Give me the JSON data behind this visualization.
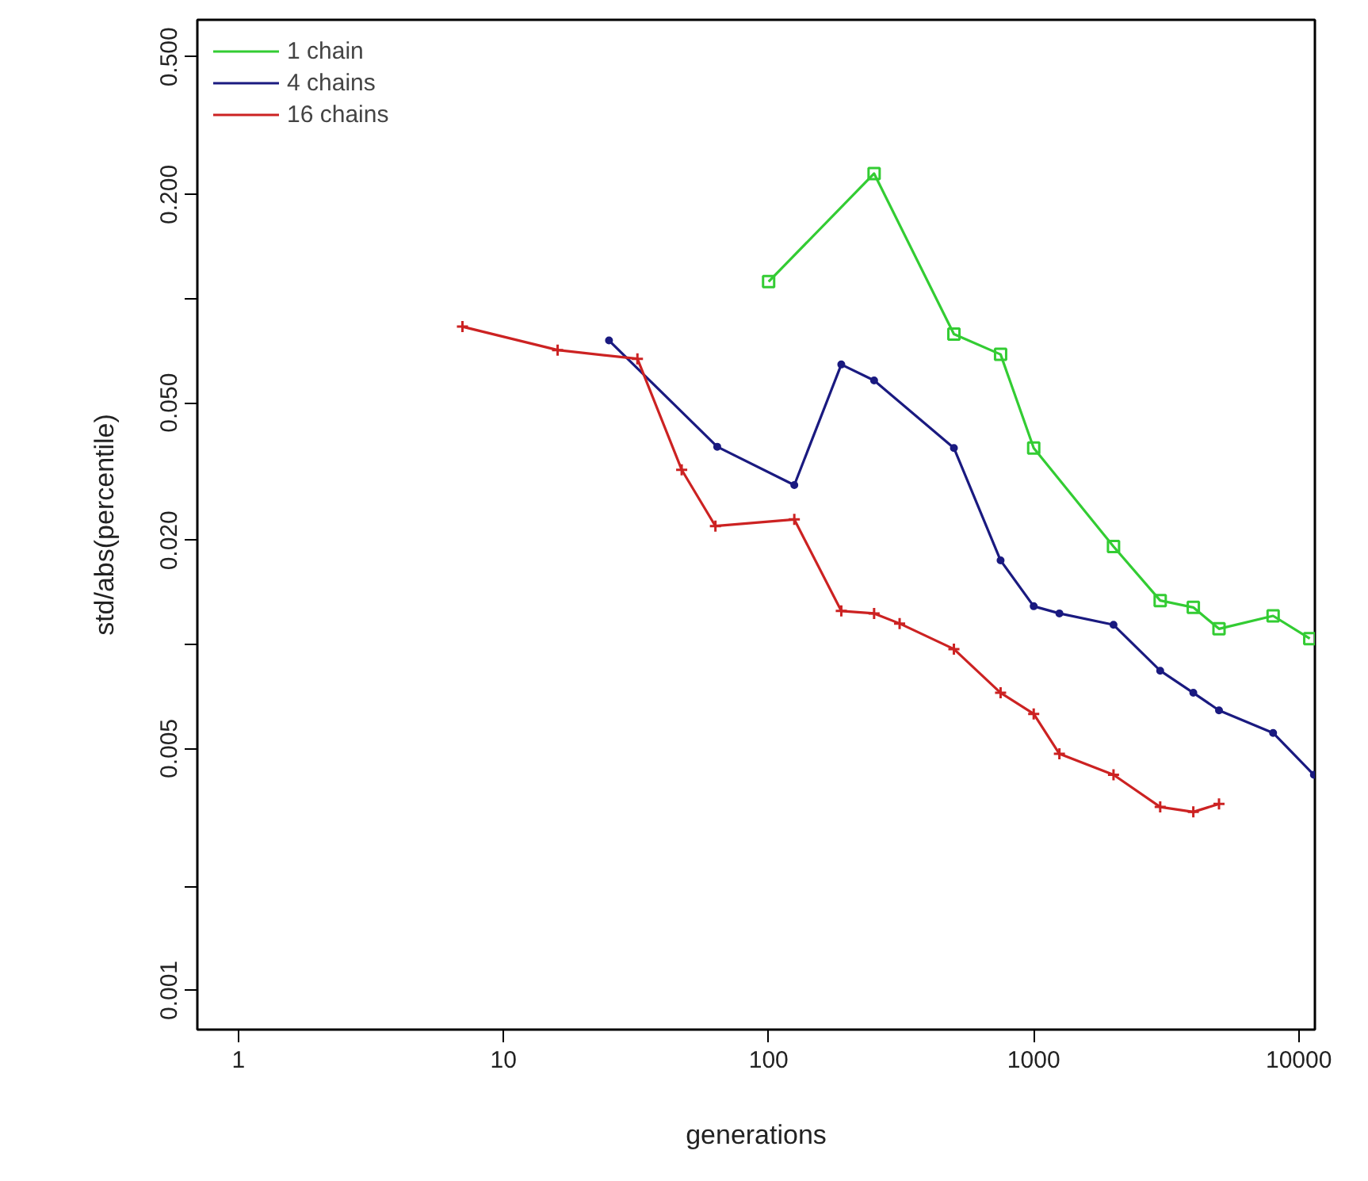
{
  "chart_data": {
    "type": "line",
    "xlabel": "generations",
    "ylabel": "std/abs(percentile)",
    "log": "xy",
    "grid": false,
    "legend": "top left",
    "xlim": [
      0.7,
      11500
    ],
    "ylim": [
      0.00077,
      0.64
    ],
    "xticks": [
      1,
      10,
      100,
      1000,
      10000
    ],
    "yticks": [
      {
        "value": 0.001,
        "label": "0.001"
      },
      {
        "value": 0.002,
        "label": null
      },
      {
        "value": 0.005,
        "label": "0.005"
      },
      {
        "value": 0.01,
        "label": null
      },
      {
        "value": 0.02,
        "label": "0.020"
      },
      {
        "value": 0.05,
        "label": "0.050"
      },
      {
        "value": 0.1,
        "label": null
      },
      {
        "value": 0.2,
        "label": "0.200"
      },
      {
        "value": 0.5,
        "label": "0.500"
      }
    ],
    "series": [
      {
        "name": "1 chain",
        "color": "#33cc33",
        "marker": "square",
        "x": [
          100,
          250,
          500,
          750,
          1000,
          2000,
          3000,
          4000,
          5000,
          8000,
          11000
        ],
        "values": [
          0.112,
          0.23,
          0.079,
          0.069,
          0.037,
          0.0192,
          0.0134,
          0.0128,
          0.0111,
          0.0121,
          0.0104
        ]
      },
      {
        "name": "4 chains",
        "color": "#1a1a80",
        "marker": "circle",
        "x": [
          25,
          64,
          125,
          188,
          250,
          500,
          750,
          1000,
          1250,
          2000,
          3000,
          4000,
          5000,
          8000,
          11400
        ],
        "values": [
          0.0757,
          0.0373,
          0.0289,
          0.0645,
          0.058,
          0.037,
          0.0175,
          0.0129,
          0.0123,
          0.0114,
          0.0084,
          0.00725,
          0.00645,
          0.00555,
          0.0042
        ]
      },
      {
        "name": "16 chains",
        "color": "#cc2222",
        "marker": "cross",
        "x": [
          7,
          16,
          32,
          47,
          63,
          125,
          188,
          250,
          312,
          500,
          750,
          1000,
          1250,
          2000,
          3000,
          4000,
          5000
        ],
        "values": [
          0.083,
          0.071,
          0.067,
          0.032,
          0.022,
          0.023,
          0.0125,
          0.0123,
          0.0115,
          0.0097,
          0.00725,
          0.0063,
          0.00483,
          0.0042,
          0.00339,
          0.00328,
          0.00346
        ]
      }
    ]
  }
}
